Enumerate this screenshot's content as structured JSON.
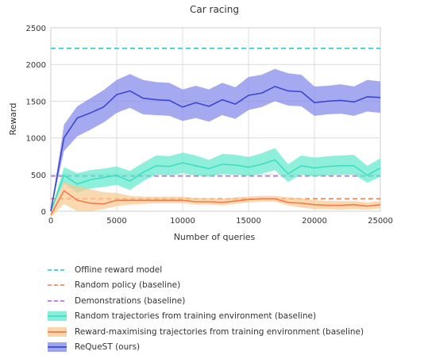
{
  "chart_data": {
    "type": "line",
    "title": "Car racing",
    "xlabel": "Number of queries",
    "ylabel": "Reward",
    "xlim": [
      0,
      25000
    ],
    "ylim": [
      0,
      2500
    ],
    "xticks": [
      0,
      5000,
      10000,
      15000,
      20000,
      25000
    ],
    "yticks": [
      0,
      500,
      1000,
      1500,
      2000,
      2500
    ],
    "grid": true,
    "legend_position": "below",
    "x": [
      0,
      1000,
      2000,
      3000,
      4000,
      5000,
      6000,
      7000,
      8000,
      9000,
      10000,
      11000,
      12000,
      13000,
      14000,
      15000,
      16000,
      17000,
      18000,
      19000,
      20000,
      21000,
      22000,
      23000,
      24000,
      25000
    ],
    "reference_lines": [
      {
        "name": "Offline reward model",
        "value": 2220,
        "color": "#22c3c3"
      },
      {
        "name": "Random policy (baseline)",
        "value": 170,
        "color": "#f27a50"
      },
      {
        "name": "Demonstrations (baseline)",
        "value": 480,
        "color": "#b05ce8"
      }
    ],
    "series": [
      {
        "name": "Random trajectories from training environment (baseline)",
        "color": "#3ddfc0",
        "fill": "#5ee8cc",
        "mean": [
          0,
          490,
          370,
          430,
          460,
          490,
          410,
          530,
          620,
          610,
          660,
          620,
          580,
          640,
          630,
          600,
          640,
          700,
          510,
          620,
          590,
          610,
          620,
          620,
          490,
          590
        ],
        "lower": [
          0,
          380,
          250,
          310,
          330,
          360,
          290,
          410,
          500,
          490,
          520,
          490,
          470,
          510,
          500,
          480,
          510,
          560,
          400,
          500,
          470,
          490,
          500,
          500,
          390,
          470
        ],
        "upper": [
          0,
          600,
          520,
          560,
          580,
          610,
          550,
          660,
          760,
          750,
          800,
          760,
          700,
          780,
          770,
          740,
          790,
          860,
          640,
          760,
          730,
          750,
          760,
          770,
          620,
          720
        ]
      },
      {
        "name": "Reward-maximising trajectories from training environment (baseline)",
        "color": "#f27a50",
        "fill": "#f8c98f",
        "mean": [
          -50,
          280,
          150,
          110,
          100,
          150,
          150,
          150,
          150,
          150,
          150,
          130,
          130,
          120,
          140,
          160,
          170,
          170,
          120,
          110,
          90,
          80,
          80,
          90,
          70,
          90
        ],
        "lower": [
          -80,
          100,
          0,
          0,
          30,
          70,
          90,
          100,
          110,
          110,
          110,
          90,
          90,
          80,
          100,
          120,
          130,
          130,
          80,
          50,
          30,
          30,
          20,
          30,
          20,
          40
        ],
        "upper": [
          0,
          400,
          340,
          300,
          260,
          250,
          210,
          200,
          200,
          200,
          200,
          180,
          180,
          170,
          190,
          200,
          210,
          210,
          190,
          180,
          150,
          140,
          140,
          140,
          120,
          140
        ]
      },
      {
        "name": "ReQueST (ours)",
        "color": "#3b46d0",
        "fill": "#7f86ea",
        "mean": [
          0,
          1000,
          1270,
          1340,
          1420,
          1590,
          1640,
          1540,
          1520,
          1510,
          1420,
          1480,
          1430,
          1520,
          1460,
          1580,
          1610,
          1700,
          1640,
          1630,
          1480,
          1500,
          1510,
          1490,
          1560,
          1550
        ],
        "lower": [
          0,
          820,
          1020,
          1110,
          1210,
          1340,
          1410,
          1320,
          1310,
          1300,
          1230,
          1270,
          1220,
          1310,
          1260,
          1380,
          1420,
          1500,
          1440,
          1430,
          1300,
          1320,
          1330,
          1300,
          1360,
          1340
        ],
        "upper": [
          0,
          1180,
          1430,
          1540,
          1650,
          1790,
          1870,
          1790,
          1760,
          1750,
          1660,
          1710,
          1660,
          1750,
          1690,
          1830,
          1860,
          1940,
          1880,
          1860,
          1700,
          1710,
          1730,
          1700,
          1790,
          1770
        ]
      }
    ]
  },
  "legend": [
    {
      "label": "Offline reward model",
      "kind": "dashed",
      "color": "#22c3c3"
    },
    {
      "label": "Random policy (baseline)",
      "kind": "dashed",
      "color": "#f27a50"
    },
    {
      "label": "Demonstrations (baseline)",
      "kind": "dashed",
      "color": "#b05ce8"
    },
    {
      "label": "Random trajectories from training environment (baseline)",
      "kind": "band",
      "color": "#3ddfc0",
      "fill": "#5ee8cc"
    },
    {
      "label": "Reward-maximising trajectories from training environment (baseline)",
      "kind": "band",
      "color": "#f27a50",
      "fill": "#f8c98f"
    },
    {
      "label": "ReQueST (ours)",
      "kind": "band",
      "color": "#3b46d0",
      "fill": "#7f86ea"
    }
  ]
}
